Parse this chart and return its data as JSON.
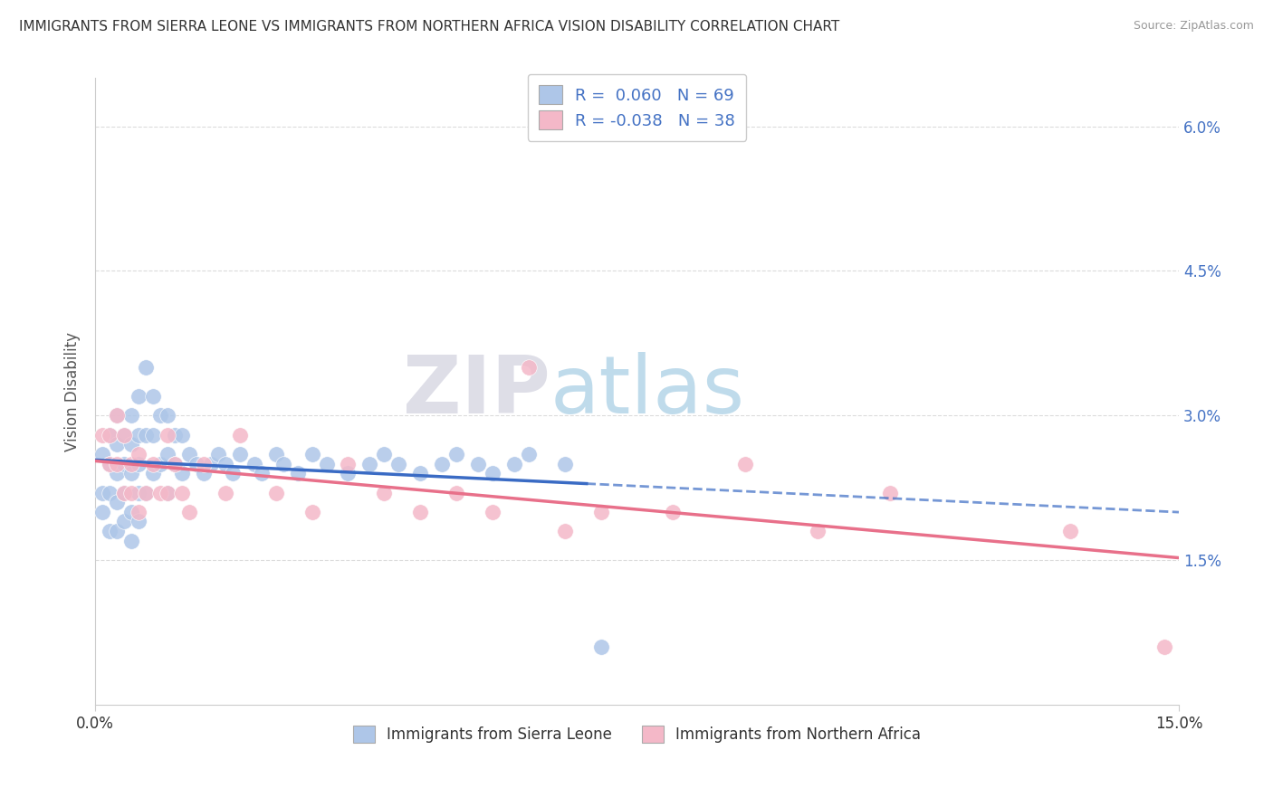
{
  "title": "IMMIGRANTS FROM SIERRA LEONE VS IMMIGRANTS FROM NORTHERN AFRICA VISION DISABILITY CORRELATION CHART",
  "source": "Source: ZipAtlas.com",
  "ylabel": "Vision Disability",
  "xlim": [
    0.0,
    0.15
  ],
  "ylim": [
    0.0,
    0.065
  ],
  "yticks": [
    0.015,
    0.03,
    0.045,
    0.06
  ],
  "ytick_labels": [
    "1.5%",
    "3.0%",
    "4.5%",
    "6.0%"
  ],
  "legend_label1": "Immigrants from Sierra Leone",
  "legend_label2": "Immigrants from Northern Africa",
  "R1": 0.06,
  "N1": 69,
  "R2": -0.038,
  "N2": 38,
  "color1": "#aec6e8",
  "color2": "#f4b8c8",
  "line_color1": "#3a6bc4",
  "line_color2": "#e8708a",
  "watermark_color": "#d0dff0",
  "watermark_color2": "#c8dde8",
  "background_color": "#ffffff",
  "grid_color": "#cccccc",
  "sl_x": [
    0.001,
    0.001,
    0.001,
    0.002,
    0.002,
    0.002,
    0.002,
    0.003,
    0.003,
    0.003,
    0.003,
    0.003,
    0.004,
    0.004,
    0.004,
    0.004,
    0.005,
    0.005,
    0.005,
    0.005,
    0.005,
    0.006,
    0.006,
    0.006,
    0.006,
    0.006,
    0.007,
    0.007,
    0.007,
    0.008,
    0.008,
    0.008,
    0.009,
    0.009,
    0.01,
    0.01,
    0.01,
    0.011,
    0.011,
    0.012,
    0.012,
    0.013,
    0.014,
    0.015,
    0.016,
    0.017,
    0.018,
    0.019,
    0.02,
    0.022,
    0.023,
    0.025,
    0.026,
    0.028,
    0.03,
    0.032,
    0.035,
    0.038,
    0.04,
    0.042,
    0.045,
    0.048,
    0.05,
    0.053,
    0.055,
    0.058,
    0.06,
    0.065,
    0.07
  ],
  "sl_y": [
    0.026,
    0.022,
    0.02,
    0.028,
    0.025,
    0.022,
    0.018,
    0.03,
    0.027,
    0.024,
    0.021,
    0.018,
    0.028,
    0.025,
    0.022,
    0.019,
    0.03,
    0.027,
    0.024,
    0.02,
    0.017,
    0.032,
    0.028,
    0.025,
    0.022,
    0.019,
    0.035,
    0.028,
    0.022,
    0.032,
    0.028,
    0.024,
    0.03,
    0.025,
    0.03,
    0.026,
    0.022,
    0.028,
    0.025,
    0.028,
    0.024,
    0.026,
    0.025,
    0.024,
    0.025,
    0.026,
    0.025,
    0.024,
    0.026,
    0.025,
    0.024,
    0.026,
    0.025,
    0.024,
    0.026,
    0.025,
    0.024,
    0.025,
    0.026,
    0.025,
    0.024,
    0.025,
    0.026,
    0.025,
    0.024,
    0.025,
    0.026,
    0.025,
    0.006
  ],
  "na_x": [
    0.001,
    0.002,
    0.002,
    0.003,
    0.003,
    0.004,
    0.004,
    0.005,
    0.005,
    0.006,
    0.006,
    0.007,
    0.008,
    0.009,
    0.01,
    0.01,
    0.011,
    0.012,
    0.013,
    0.015,
    0.018,
    0.02,
    0.025,
    0.03,
    0.035,
    0.04,
    0.045,
    0.05,
    0.055,
    0.06,
    0.065,
    0.07,
    0.08,
    0.09,
    0.1,
    0.11,
    0.135,
    0.148
  ],
  "na_y": [
    0.028,
    0.028,
    0.025,
    0.03,
    0.025,
    0.028,
    0.022,
    0.025,
    0.022,
    0.026,
    0.02,
    0.022,
    0.025,
    0.022,
    0.028,
    0.022,
    0.025,
    0.022,
    0.02,
    0.025,
    0.022,
    0.028,
    0.022,
    0.02,
    0.025,
    0.022,
    0.02,
    0.022,
    0.02,
    0.035,
    0.018,
    0.02,
    0.02,
    0.025,
    0.018,
    0.022,
    0.018,
    0.006
  ]
}
